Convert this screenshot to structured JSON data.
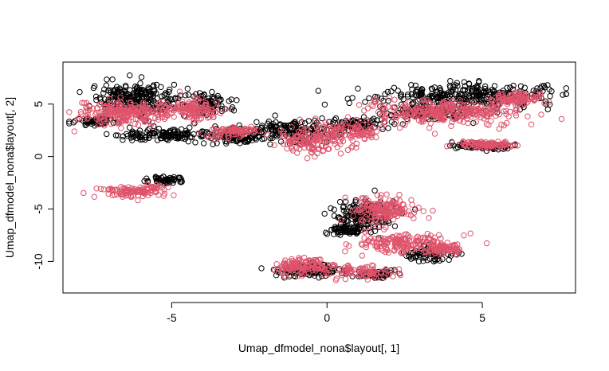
{
  "chart_data": {
    "type": "scatter",
    "title": "",
    "xlabel": "Umap_dfmodel_nona$layout[, 1]",
    "ylabel": "Umap_dfmodel_nona$layout[, 2]",
    "xlim": [
      -8.5,
      8
    ],
    "ylim": [
      -13,
      9
    ],
    "xticks": [
      -5,
      0,
      5
    ],
    "xtick_labels": [
      "-5",
      "0",
      "5"
    ],
    "yticks": [
      -10,
      -5,
      0,
      5
    ],
    "ytick_labels": [
      "-10",
      "-5",
      "0",
      "5"
    ],
    "grid": false,
    "legend": "none",
    "marker": "open-circle",
    "series": [
      {
        "color": "#000000",
        "clusters": [
          {
            "cx": -6.2,
            "cy": 5.5,
            "sx": 1.1,
            "sy": 1.2,
            "n": 230
          },
          {
            "cx": -7.5,
            "cy": 3.4,
            "sx": 0.5,
            "sy": 0.3,
            "n": 60
          },
          {
            "cx": -5.2,
            "cy": 2.0,
            "sx": 1.2,
            "sy": 0.4,
            "n": 130
          },
          {
            "cx": -3.8,
            "cy": 5.0,
            "sx": 0.6,
            "sy": 0.8,
            "n": 90
          },
          {
            "cx": -3.0,
            "cy": 2.0,
            "sx": 0.9,
            "sy": 0.6,
            "n": 120
          },
          {
            "cx": -1.0,
            "cy": 2.5,
            "sx": 1.2,
            "sy": 1.0,
            "n": 160
          },
          {
            "cx": 1.0,
            "cy": 3.0,
            "sx": 0.8,
            "sy": 0.5,
            "n": 90
          },
          {
            "cx": -5.2,
            "cy": -2.2,
            "sx": 0.5,
            "sy": 0.3,
            "n": 50
          },
          {
            "cx": 4.5,
            "cy": 5.8,
            "sx": 2.3,
            "sy": 0.9,
            "n": 300
          },
          {
            "cx": 3.3,
            "cy": 4.2,
            "sx": 1.2,
            "sy": 0.5,
            "n": 110
          },
          {
            "cx": 5.0,
            "cy": 1.0,
            "sx": 0.8,
            "sy": 0.3,
            "n": 80
          },
          {
            "cx": 1.2,
            "cy": -5.5,
            "sx": 0.8,
            "sy": 1.1,
            "n": 170
          },
          {
            "cx": 0.6,
            "cy": -7.0,
            "sx": 0.5,
            "sy": 0.4,
            "n": 60
          },
          {
            "cx": -0.6,
            "cy": -10.8,
            "sx": 0.9,
            "sy": 0.5,
            "n": 140
          },
          {
            "cx": 1.6,
            "cy": -11.2,
            "sx": 0.6,
            "sy": 0.3,
            "n": 60
          },
          {
            "cx": 3.3,
            "cy": -9.2,
            "sx": 0.6,
            "sy": 0.6,
            "n": 70
          }
        ]
      },
      {
        "color": "#DF536B",
        "clusters": [
          {
            "cx": -6.5,
            "cy": 4.2,
            "sx": 1.2,
            "sy": 1.0,
            "n": 230
          },
          {
            "cx": -4.3,
            "cy": 4.6,
            "sx": 0.7,
            "sy": 0.8,
            "n": 110
          },
          {
            "cx": -3.0,
            "cy": 2.3,
            "sx": 0.8,
            "sy": 0.5,
            "n": 80
          },
          {
            "cx": -0.5,
            "cy": 1.5,
            "sx": 1.0,
            "sy": 1.0,
            "n": 140
          },
          {
            "cx": 0.8,
            "cy": 2.5,
            "sx": 0.8,
            "sy": 0.7,
            "n": 90
          },
          {
            "cx": -6.2,
            "cy": -3.3,
            "sx": 0.9,
            "sy": 0.5,
            "n": 110
          },
          {
            "cx": 3.8,
            "cy": 4.2,
            "sx": 2.0,
            "sy": 1.0,
            "n": 300
          },
          {
            "cx": 6.2,
            "cy": 5.5,
            "sx": 0.8,
            "sy": 0.5,
            "n": 90
          },
          {
            "cx": 5.1,
            "cy": 1.2,
            "sx": 0.8,
            "sy": 0.3,
            "n": 90
          },
          {
            "cx": 1.8,
            "cy": -5.0,
            "sx": 0.8,
            "sy": 1.0,
            "n": 170
          },
          {
            "cx": 2.5,
            "cy": -8.3,
            "sx": 1.2,
            "sy": 0.8,
            "n": 170
          },
          {
            "cx": -0.8,
            "cy": -10.5,
            "sx": 0.8,
            "sy": 0.6,
            "n": 130
          },
          {
            "cx": 1.2,
            "cy": -11.0,
            "sx": 0.7,
            "sy": 0.5,
            "n": 80
          },
          {
            "cx": 3.8,
            "cy": -8.8,
            "sx": 0.5,
            "sy": 0.4,
            "n": 60
          }
        ]
      }
    ]
  }
}
